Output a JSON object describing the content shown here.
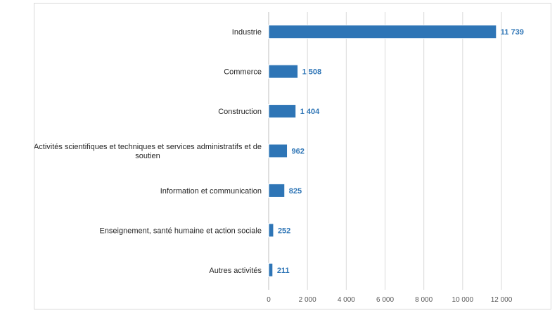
{
  "chart_data": {
    "type": "bar",
    "orientation": "horizontal",
    "categories": [
      "Industrie",
      "Commerce",
      "Construction",
      "Activités scientifiques et techniques et services administratifs et de soutien",
      "Information et communication",
      "Enseignement, santé humaine et action sociale",
      "Autres activités"
    ],
    "category_lines": [
      [
        "Industrie"
      ],
      [
        "Commerce"
      ],
      [
        "Construction"
      ],
      [
        "Activités scientifiques et techniques et services administratifs et de",
        "soutien"
      ],
      [
        "Information et communication"
      ],
      [
        "Enseignement, santé humaine et action sociale"
      ],
      [
        "Autres activités"
      ]
    ],
    "values": [
      11739,
      1508,
      1404,
      962,
      825,
      252,
      211
    ],
    "data_labels": [
      "11 739",
      "1 508",
      "1 404",
      "962",
      "825",
      "252",
      "211"
    ],
    "xlim": [
      0,
      12000
    ],
    "ticks": [
      0,
      2000,
      4000,
      6000,
      8000,
      10000,
      12000
    ],
    "tick_labels": [
      "0",
      "2 000",
      "4 000",
      "6 000",
      "8 000",
      "10 000",
      "12 000"
    ],
    "title": "",
    "xlabel": "",
    "ylabel": "",
    "grid": "vertical",
    "legend": "none",
    "colors": {
      "bar": "#2e75b6",
      "bar_outline": "#ffffff",
      "data_label": "#2e75b6",
      "grid": "#d9d9d9",
      "axis": "#bfbfbf"
    }
  }
}
